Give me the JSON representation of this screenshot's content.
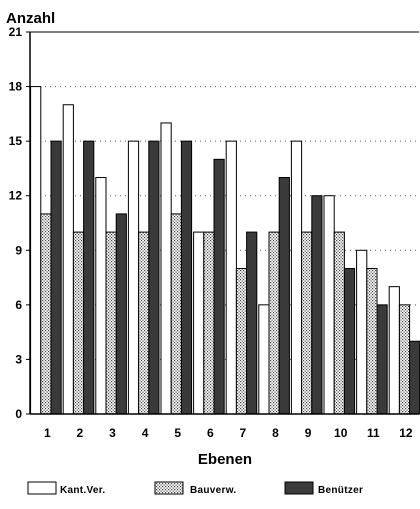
{
  "chart_data": {
    "type": "bar",
    "title": "",
    "ylabel": "Anzahl",
    "xlabel": "Ebenen",
    "categories": [
      "1",
      "2",
      "3",
      "4",
      "5",
      "6",
      "7",
      "8",
      "9",
      "10",
      "11",
      "12"
    ],
    "ylim": [
      0,
      21
    ],
    "yticks": [
      0,
      3,
      6,
      9,
      12,
      15,
      18,
      21
    ],
    "grid": "horizontal dotted",
    "legend_position": "bottom",
    "series": [
      {
        "name": "Kant.Ver.",
        "values": [
          18,
          17,
          13,
          15,
          16,
          10,
          15,
          6,
          15,
          12,
          9,
          7
        ],
        "fill": "white"
      },
      {
        "name": "Bauverw.",
        "values": [
          11,
          10,
          10,
          10,
          11,
          10,
          8,
          10,
          10,
          10,
          8,
          6
        ],
        "fill": "dotted"
      },
      {
        "name": "Benützer",
        "values": [
          15,
          15,
          11,
          15,
          15,
          14,
          10,
          13,
          12,
          8,
          6,
          4
        ],
        "fill": "dark"
      }
    ]
  },
  "colors": {
    "axis": "#000000",
    "grid": "#555555",
    "dark_bar": "#3a3a3a",
    "white_bar": "#ffffff",
    "dotted_bg": "#ffffff",
    "dotted_dot": "#444444"
  }
}
